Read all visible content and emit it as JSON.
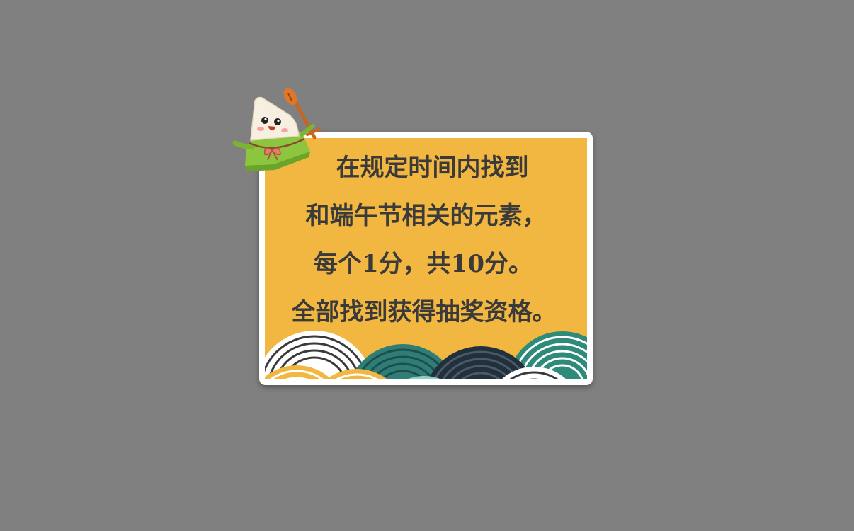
{
  "dialog": {
    "lines": [
      "在规定时间内找到",
      "和端午节相关的元素，",
      "每个1分，共10分。",
      "全部找到获得抽奖资格。"
    ]
  },
  "colors": {
    "background": "#808080",
    "card_border": "#ffffff",
    "card_fill": "#f2b740",
    "text": "#3a3a3a"
  },
  "icons": {
    "mascot": "zongzi-mascot-icon",
    "decoration": "wave-pattern-icon"
  }
}
